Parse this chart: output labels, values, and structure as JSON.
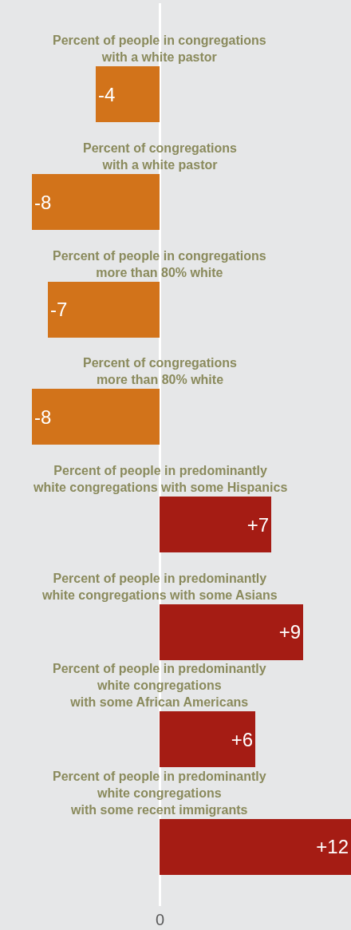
{
  "chart_data": {
    "type": "bar",
    "orientation": "horizontal",
    "categories": [
      "Percent of people in congregations\nwith a white pastor",
      "Percent of congregations\nwith a white pastor",
      "Percent of people in congregations\nmore than 80% white",
      "Percent of congregations\nmore than 80% white",
      "Percent of people in predominantly\nwhite congregations with some Hispanics",
      "Percent of people in predominantly\nwhite congregations with some Asians",
      "Percent of people in predominantly\nwhite congregations\nwith some African Americans",
      "Percent of people in predominantly\nwhite congregations\nwith some recent immigrants"
    ],
    "values": [
      -4,
      -8,
      -7,
      -8,
      7,
      9,
      6,
      12
    ],
    "value_labels": [
      "-4",
      "-8",
      "-7",
      "-8",
      "+7",
      "+9",
      "+6",
      "+12"
    ],
    "colors": [
      "#d2731a",
      "#d2731a",
      "#d2731a",
      "#d2731a",
      "#a51c14",
      "#a51c14",
      "#a51c14",
      "#a51c14"
    ],
    "xlim": [
      -10,
      12
    ],
    "annotations": [
      "0"
    ]
  }
}
